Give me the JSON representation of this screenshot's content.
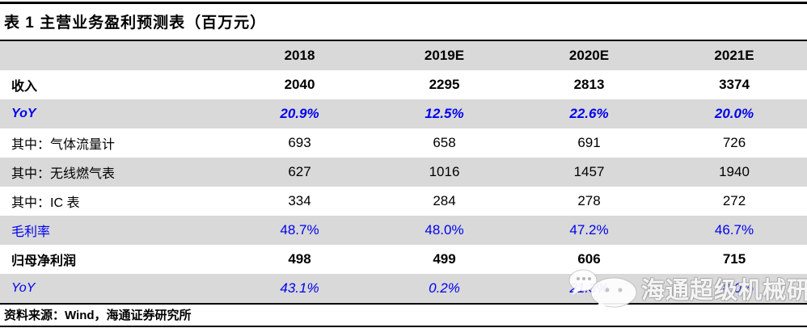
{
  "title": "表 1 主营业务盈利预测表（百万元）",
  "source_note": "资料来源：Wind，海通证券研究所",
  "watermark": {
    "text": "海通超级机械研究",
    "icon": "wechat-icon"
  },
  "colors": {
    "stripe_gray": "#d9d9d9",
    "accent_blue": "#0000ee",
    "rule_black": "#000000",
    "watermark_white": "rgba(255,255,255,0.88)"
  },
  "table": {
    "columns": [
      "",
      "2018",
      "2019E",
      "2020E",
      "2021E"
    ],
    "rows": [
      {
        "label": "收入",
        "values": [
          "2040",
          "2295",
          "2813",
          "3374"
        ],
        "style": "bold-black"
      },
      {
        "label": "YoY",
        "values": [
          "20.9%",
          "12.5%",
          "22.6%",
          "20.0%"
        ],
        "style": "blue-bold-italic"
      },
      {
        "label": "其中：气体流量计",
        "values": [
          "693",
          "658",
          "691",
          "726"
        ],
        "style": "regular-black"
      },
      {
        "label": "其中：无线燃气表",
        "values": [
          "627",
          "1016",
          "1457",
          "1940"
        ],
        "style": "regular-black"
      },
      {
        "label": "其中：IC 表",
        "values": [
          "334",
          "284",
          "278",
          "272"
        ],
        "style": "regular-black"
      },
      {
        "label": "毛利率",
        "values": [
          "48.7%",
          "48.0%",
          "47.2%",
          "46.7%"
        ],
        "style": "blue-regular"
      },
      {
        "label": "归母净利润",
        "values": [
          "498",
          "499",
          "606",
          "715"
        ],
        "style": "bold-black"
      },
      {
        "label": "YoY",
        "values": [
          "43.1%",
          "0.2%",
          "21.3%",
          "18.0%"
        ],
        "style": "blue-italic"
      }
    ]
  }
}
